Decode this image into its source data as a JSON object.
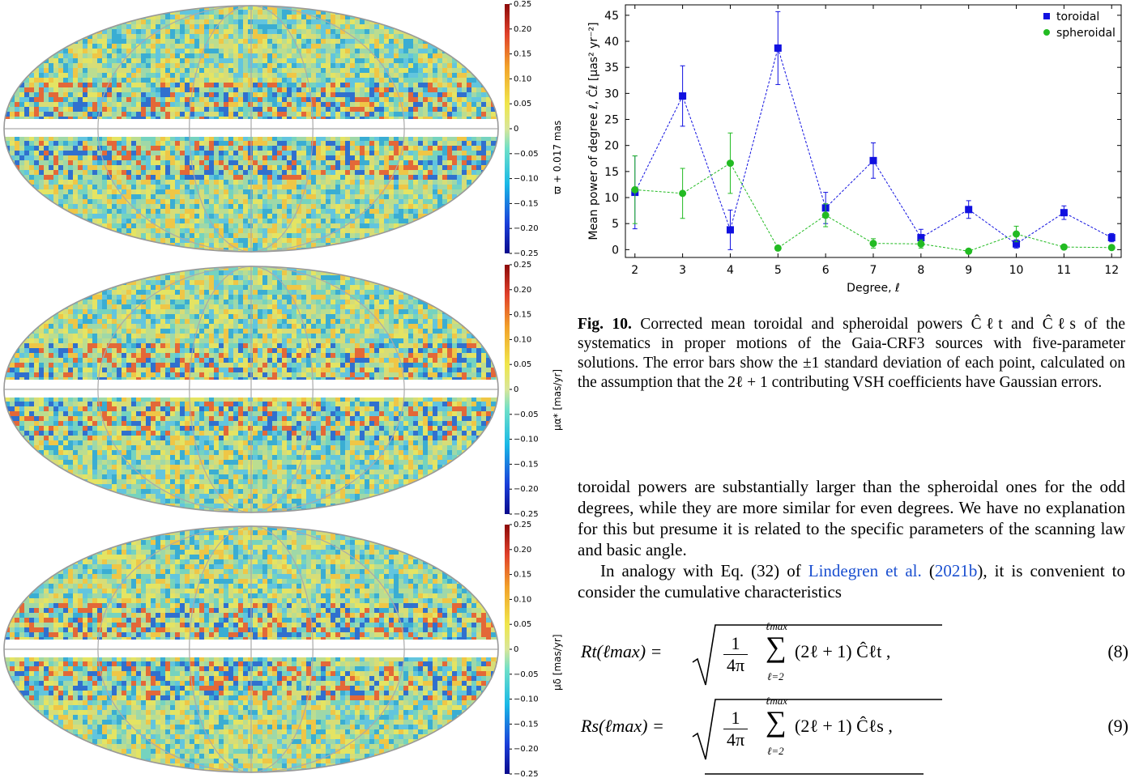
{
  "maps": [
    {
      "colorbar_label": "ϖ + 0.017  mas",
      "ticks": [
        "0.25",
        "0.20",
        "0.15",
        "0.10",
        "0.05",
        "0",
        "−0.05",
        "−0.10",
        "−0.15",
        "−0.20",
        "−0.25"
      ]
    },
    {
      "colorbar_label": "μα* [mas/yr]",
      "ticks": [
        "0.25",
        "0.20",
        "0.15",
        "0.10",
        "0.05",
        "0",
        "−0.05",
        "−0.10",
        "−0.15",
        "−0.20",
        "−0.25"
      ]
    },
    {
      "colorbar_label": "μδ [mas/yr]",
      "ticks": [
        "0.25",
        "0.20",
        "0.15",
        "0.10",
        "0.05",
        "0",
        "−0.05",
        "−0.10",
        "−0.15",
        "−0.20",
        "−0.25"
      ]
    }
  ],
  "chart_data": {
    "type": "line",
    "x": [
      2,
      3,
      4,
      5,
      6,
      7,
      8,
      9,
      10,
      11,
      12
    ],
    "series": [
      {
        "name": "toroidal",
        "color": "#1010e0",
        "marker": "square",
        "values": [
          11.0,
          29.5,
          3.8,
          38.7,
          8.0,
          17.1,
          2.3,
          7.7,
          1.1,
          7.1,
          2.3
        ],
        "errors": [
          7.0,
          5.8,
          3.8,
          7.0,
          3.0,
          3.4,
          1.6,
          1.7,
          0.8,
          1.3,
          0.8
        ]
      },
      {
        "name": "spheroidal",
        "color": "#22bb22",
        "marker": "circle",
        "values": [
          11.5,
          10.8,
          16.6,
          0.3,
          6.6,
          1.2,
          1.1,
          -0.3,
          3.0,
          0.5,
          0.4
        ],
        "errors": [
          6.5,
          4.8,
          5.8,
          0.0,
          2.2,
          0.9,
          0.8,
          0.0,
          1.5,
          0.4,
          0.3
        ]
      }
    ],
    "xlabel": "Degree, ℓ",
    "ylabel": "Mean power of degree ℓ, Ĉℓ [μas² yr⁻²]",
    "xlim": [
      1.8,
      12.2
    ],
    "ylim": [
      -1.5,
      47
    ],
    "yticks": [
      0,
      5,
      10,
      15,
      20,
      25,
      30,
      35,
      40,
      45
    ],
    "legend": "top-right"
  },
  "caption": {
    "label": "Fig. 10.",
    "text": " Corrected mean toroidal and spheroidal powers Ĉℓt and Ĉℓs of the systematics in proper motions of the Gaia-CRF3 sources with five-parameter solutions. The error bars show the ±1 standard deviation of each point, calculated on the assumption that the 2ℓ + 1 contributing VSH coefficients have Gaussian errors."
  },
  "body": {
    "para1": "toroidal powers are substantially larger than the spheroidal ones for the odd degrees, while they are more similar for even degrees. We have no explanation for this but presume it is related to the specific parameters of the scanning law and basic angle.",
    "para2_start": "In analogy with Eq. (32) of ",
    "para2_link": "Lindegren et al.",
    "para2_paren_open": " (",
    "para2_year": "2021b",
    "para2_end": "), it is convenient to consider the cumulative characteristics"
  },
  "equations": [
    {
      "lhs": "Rt(ℓmax) =",
      "sum_top": "ℓmax",
      "sum_bot": "ℓ=2",
      "frac_num": "1",
      "frac_den": "4π",
      "body": "(2ℓ + 1) Ĉℓt ,",
      "number": "(8)"
    },
    {
      "lhs": "Rs(ℓmax) =",
      "sum_top": "ℓmax",
      "sum_bot": "ℓ=2",
      "frac_num": "1",
      "frac_den": "4π",
      "body": "(2ℓ + 1) Ĉℓs ,",
      "number": "(9)"
    }
  ]
}
